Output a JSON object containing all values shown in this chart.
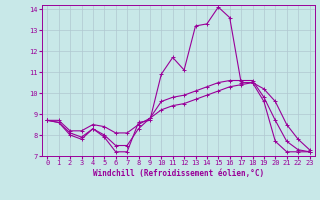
{
  "background_color": "#c8e8e8",
  "grid_color": "#b0c8d0",
  "line_color": "#990099",
  "xlim": [
    -0.5,
    23.5
  ],
  "ylim": [
    7,
    14.2
  ],
  "yticks": [
    7,
    8,
    9,
    10,
    11,
    12,
    13,
    14
  ],
  "xticks": [
    0,
    1,
    2,
    3,
    4,
    5,
    6,
    7,
    8,
    9,
    10,
    11,
    12,
    13,
    14,
    15,
    16,
    17,
    18,
    19,
    20,
    21,
    22,
    23
  ],
  "xlabel": "Windchill (Refroidissement éolien,°C)",
  "series": [
    {
      "x": [
        0,
        1,
        2,
        3,
        4,
        5,
        6,
        7,
        8,
        9,
        10,
        11,
        12,
        13,
        14,
        15,
        16,
        17,
        18,
        19,
        20,
        21,
        22,
        23
      ],
      "y": [
        8.7,
        8.6,
        8.0,
        7.8,
        8.3,
        7.9,
        7.2,
        7.2,
        8.6,
        8.7,
        10.9,
        11.7,
        11.1,
        13.2,
        13.3,
        14.1,
        13.6,
        10.5,
        10.5,
        9.6,
        7.7,
        7.2,
        7.2,
        7.2
      ]
    },
    {
      "x": [
        0,
        1,
        2,
        3,
        4,
        5,
        6,
        7,
        8,
        9,
        10,
        11,
        12,
        13,
        14,
        15,
        16,
        17,
        18,
        19,
        20,
        21,
        22,
        23
      ],
      "y": [
        8.7,
        8.6,
        8.1,
        7.9,
        8.3,
        8.0,
        7.5,
        7.5,
        8.3,
        8.8,
        9.6,
        9.8,
        9.9,
        10.1,
        10.3,
        10.5,
        10.6,
        10.6,
        10.6,
        9.8,
        8.7,
        7.7,
        7.3,
        7.2
      ]
    },
    {
      "x": [
        0,
        1,
        2,
        3,
        4,
        5,
        6,
        7,
        8,
        9,
        10,
        11,
        12,
        13,
        14,
        15,
        16,
        17,
        18,
        19,
        20,
        21,
        22,
        23
      ],
      "y": [
        8.7,
        8.7,
        8.2,
        8.2,
        8.5,
        8.4,
        8.1,
        8.1,
        8.5,
        8.8,
        9.2,
        9.4,
        9.5,
        9.7,
        9.9,
        10.1,
        10.3,
        10.4,
        10.5,
        10.2,
        9.6,
        8.5,
        7.8,
        7.3
      ]
    }
  ],
  "axis_fontsize": 5.5,
  "tick_fontsize": 5.0
}
